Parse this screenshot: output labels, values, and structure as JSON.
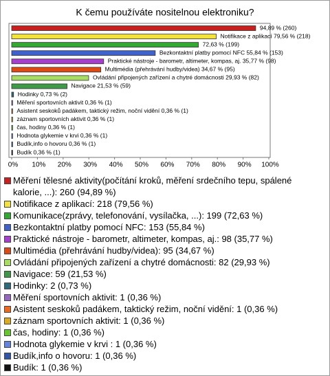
{
  "chart_data": {
    "type": "bar",
    "orientation": "horizontal",
    "title": "K čemu používáte nositelnou elektroniku?",
    "categories": [
      "Měření tělesné aktivity(počítání kroků, měření srdečního tepu, spálené kalorie, ...): 260 (94,89 %)",
      "Notifikace z aplikací: 218 (79,56 %)",
      "Komunikace(zprávy, telefonování, vysílačka, ...): 199 (72,63 %)",
      "Bezkontaktní platby pomocí NFC: 153 (55,84 %)",
      "Praktické nástroje - barometr, altimeter, kompas, aj.: 98 (35,77 %)",
      "Multimédia (přehrávání hudby/videa): 95 (34,67 %)",
      "Ovládání připojených zařízení a chytré domácnosti: 82 (29,93 %)",
      "Navigace: 59 (21,53 %)",
      "Hodinky: 2 (0,73 %)",
      "Měření sportovních aktivit: 1 (0,36 %)",
      "Asistent seskoků padákem, taktický režim, noční vidění: 1 (0,36 %)",
      "záznam sportovních aktivit: 1 (0,36 %)",
      "čas, hodiny: 1 (0,36 %)",
      "Hodnota glykemie v krvi : 1 (0,36 %)",
      "Budík,info o hovoru: 1 (0,36 %)",
      "Budík: 1 (0,36 %)"
    ],
    "values": [
      94.89,
      79.56,
      72.63,
      55.84,
      35.77,
      34.67,
      29.93,
      21.53,
      0.73,
      0.36,
      0.36,
      0.36,
      0.36,
      0.36,
      0.36,
      0.36
    ],
    "value_labels": [
      "94,89 % (260)",
      "Notifikace z aplikací 79,56 % (218)",
      "72,63 % (199)",
      "Bezkontaktní platby pomocí NFC 55,84 % (153)",
      "Praktické nástroje - barometr, altimeter, kompas, aj. 35,77 % (98)",
      "Multimédia (přehrávání hudby/videa) 34,67 % (95)",
      "Ovládání připojených zařízení a chytré domácnosti 29,93 % (82)",
      "Navigace 21,53 % (59)",
      "Hodinky 0,73 % (2)",
      "Měření sportovních aktivit 0,36 % (1)",
      "Asistent seskoků padákem, taktický režim, noční vidění 0,36 % (1)",
      "záznam sportovních aktivit 0,36 % (1)",
      "čas, hodiny 0,36 % (1)",
      "Hodnota glykemie v krvi  0,36 % (1)",
      "Budík,info o hovoru 0,36 % (1)",
      "Budík 0,36 % (1)"
    ],
    "colors": [
      "#c8201e",
      "#f2e33c",
      "#33a833",
      "#3f62cc",
      "#a53fcc",
      "#dd4a14",
      "#a8dc62",
      "#3f9a48",
      "#2f6a7a",
      "#9466bf",
      "#ea6a22",
      "#dcab1e",
      "#66c632",
      "#6384de",
      "#3355a8",
      "#111111"
    ],
    "xlim": [
      0,
      100
    ],
    "xticks": [
      {
        "value": 0,
        "label": "0%"
      },
      {
        "value": 10,
        "label": "10%"
      },
      {
        "value": 20,
        "label": "20%"
      },
      {
        "value": 30,
        "label": "30%"
      },
      {
        "value": 40,
        "label": "40%"
      },
      {
        "value": 50,
        "label": "50%"
      },
      {
        "value": 60,
        "label": "60%"
      },
      {
        "value": 70,
        "label": "70%"
      },
      {
        "value": 80,
        "label": "80%"
      },
      {
        "value": 90,
        "label": "90%"
      },
      {
        "value": 100,
        "label": "100%"
      }
    ]
  }
}
